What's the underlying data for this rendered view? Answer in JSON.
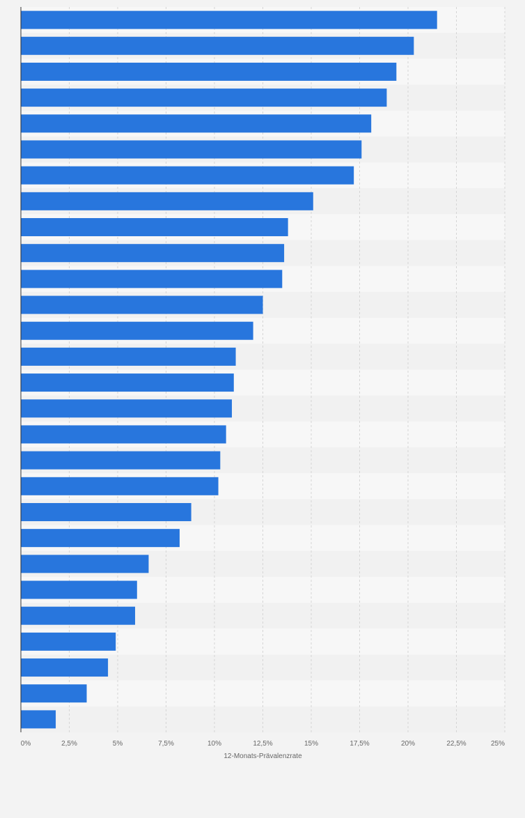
{
  "chart_data": {
    "type": "bar",
    "orientation": "horizontal",
    "xlabel": "12-Monats-Prävalenzrate",
    "xlim": [
      0,
      25
    ],
    "tick_values": [
      0,
      2.5,
      5,
      7.5,
      10,
      12.5,
      15,
      17.5,
      20,
      22.5,
      25
    ],
    "tick_labels": [
      "0%",
      "2,5%",
      "5%",
      "7,5%",
      "10%",
      "12,5%",
      "15%",
      "17,5%",
      "20%",
      "22,5%",
      "25%"
    ],
    "values": [
      21.5,
      20.3,
      19.4,
      18.9,
      18.1,
      17.6,
      17.2,
      15.1,
      13.8,
      13.6,
      13.5,
      12.5,
      12.0,
      11.1,
      11.0,
      10.9,
      10.6,
      10.3,
      10.2,
      8.8,
      8.2,
      6.6,
      6.0,
      5.9,
      4.9,
      4.5,
      3.4,
      1.8
    ],
    "grid": true,
    "colors": {
      "bar": "#2876dd",
      "grid": "#d5d5d5",
      "band_light": "#f7f7f7",
      "band_dark": "#f1f1f1",
      "axis": "#333333",
      "tick_text": "#666666",
      "page_bg": "#f3f3f3"
    }
  }
}
